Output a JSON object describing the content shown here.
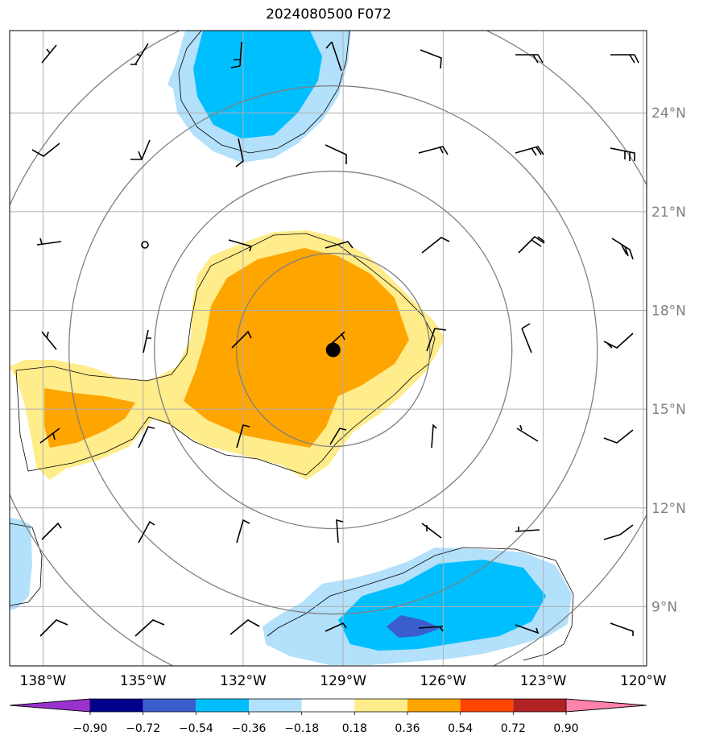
{
  "map": {
    "title": "2024080500 F072",
    "extent": {
      "lon_min": -139,
      "lon_max": -119.9,
      "lat_min": 7.2,
      "lat_max": 26.5
    },
    "lon_ticks": [
      {
        "value": -138,
        "label": "138°W"
      },
      {
        "value": -135,
        "label": "135°W"
      },
      {
        "value": -132,
        "label": "132°W"
      },
      {
        "value": -129,
        "label": "129°W"
      },
      {
        "value": -126,
        "label": "126°W"
      },
      {
        "value": -123,
        "label": "123°W"
      },
      {
        "value": -120,
        "label": "120°W"
      }
    ],
    "lat_ticks": [
      {
        "value": 24,
        "label": "24°N"
      },
      {
        "value": 21,
        "label": "21°N"
      },
      {
        "value": 18,
        "label": "18°N"
      },
      {
        "value": 15,
        "label": "15°N"
      },
      {
        "value": 12,
        "label": "12°N"
      },
      {
        "value": 9,
        "label": "9°N"
      }
    ],
    "center": {
      "lon": -129.3,
      "lat": 16.8
    },
    "grid_color": "#b0b0b0",
    "ring_color": "#808080"
  },
  "colorbar": {
    "boundaries": [
      "−0.90",
      "−0.72",
      "−0.54",
      "−0.36",
      "−0.18",
      "0.18",
      "0.36",
      "0.54",
      "0.72",
      "0.90"
    ],
    "colors": [
      "#9932cc",
      "#00008b",
      "#3a5fcd",
      "#00bfff",
      "#b3e0fb",
      "#ffffff",
      "#ffec8b",
      "#ffa500",
      "#ff4500",
      "#b22222",
      "#ff82ab"
    ]
  },
  "fill_colors": {
    "light_blue": "#b3e0fb",
    "blue": "#00bfff",
    "royal_blue": "#3a5fcd",
    "light_yellow": "#ffec8b",
    "orange": "#ffa500"
  }
}
